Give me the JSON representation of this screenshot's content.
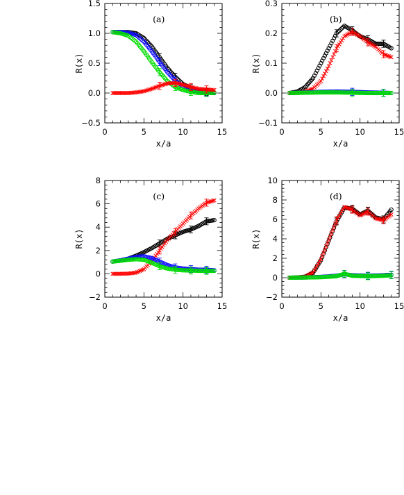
{
  "figure": {
    "colors": {
      "black": "#000000",
      "red": "#ff0000",
      "green": "#00dd00",
      "blue": "#1010ff",
      "cyan": "#00c8c8"
    }
  },
  "chart_data": [
    {
      "type": "scatter",
      "panel": "(a)",
      "xlabel": "x/a",
      "ylabel": "R(x)",
      "xlim": [
        0,
        15
      ],
      "ylim": [
        -0.5,
        1.5
      ],
      "xticks": [
        "0",
        "5",
        "10",
        "15"
      ],
      "yticks": [
        "−0.5",
        "0.0",
        "0.5",
        "1.0",
        "1.5"
      ],
      "ytick_values": [
        -0.5,
        0.0,
        0.5,
        1.0,
        1.5
      ],
      "series": [
        {
          "color": "black",
          "marker": "circle",
          "points": [
            [
              1,
              1.02
            ],
            [
              2,
              1.02
            ],
            [
              3,
              1.02
            ],
            [
              4,
              1.0
            ],
            [
              5,
              0.92
            ],
            [
              6,
              0.78
            ],
            [
              7,
              0.6
            ],
            [
              8,
              0.42
            ],
            [
              9,
              0.27
            ],
            [
              10,
              0.15
            ],
            [
              11,
              0.08
            ],
            [
              12,
              0.04
            ],
            [
              13,
              0.02
            ],
            [
              14,
              0.01
            ]
          ]
        },
        {
          "color": "blue",
          "marker": "circle",
          "points": [
            [
              1,
              1.02
            ],
            [
              2,
              1.02
            ],
            [
              3,
              1.01
            ],
            [
              4,
              0.97
            ],
            [
              5,
              0.86
            ],
            [
              6,
              0.7
            ],
            [
              7,
              0.52
            ],
            [
              8,
              0.35
            ],
            [
              9,
              0.21
            ],
            [
              10,
              0.11
            ],
            [
              11,
              0.05
            ],
            [
              12,
              0.02
            ],
            [
              13,
              0.01
            ],
            [
              14,
              0.0
            ]
          ]
        },
        {
          "color": "green",
          "marker": "circle",
          "points": [
            [
              1,
              1.02
            ],
            [
              2,
              1.0
            ],
            [
              3,
              0.96
            ],
            [
              4,
              0.86
            ],
            [
              5,
              0.7
            ],
            [
              6,
              0.52
            ],
            [
              7,
              0.35
            ],
            [
              8,
              0.2
            ],
            [
              9,
              0.1
            ],
            [
              10,
              0.05
            ],
            [
              11,
              0.02
            ],
            [
              12,
              0.0
            ],
            [
              13,
              0.0
            ],
            [
              14,
              0.0
            ]
          ]
        },
        {
          "color": "red",
          "marker": "cross",
          "points": [
            [
              1,
              0.0
            ],
            [
              2,
              0.0
            ],
            [
              3,
              0.0
            ],
            [
              4,
              0.01
            ],
            [
              5,
              0.03
            ],
            [
              6,
              0.07
            ],
            [
              7,
              0.12
            ],
            [
              8,
              0.16
            ],
            [
              9,
              0.17
            ],
            [
              10,
              0.14
            ],
            [
              11,
              0.1
            ],
            [
              12,
              0.07
            ],
            [
              13,
              0.06
            ],
            [
              14,
              0.05
            ]
          ]
        }
      ]
    },
    {
      "type": "scatter",
      "panel": "(b)",
      "xlabel": "x/a",
      "ylabel": "R(x)",
      "xlim": [
        0,
        15
      ],
      "ylim": [
        -0.1,
        0.3
      ],
      "xticks": [
        "0",
        "5",
        "10",
        "15"
      ],
      "yticks": [
        "−0.1",
        "0.0",
        "0.1",
        "0.2",
        "0.3"
      ],
      "ytick_values": [
        -0.1,
        0.0,
        0.1,
        0.2,
        0.3
      ],
      "series": [
        {
          "color": "black",
          "marker": "circle",
          "points": [
            [
              1,
              0.0
            ],
            [
              2,
              0.005
            ],
            [
              3,
              0.02
            ],
            [
              4,
              0.05
            ],
            [
              5,
              0.1
            ],
            [
              6,
              0.15
            ],
            [
              7,
              0.2
            ],
            [
              8,
              0.225
            ],
            [
              9,
              0.21
            ],
            [
              10,
              0.19
            ],
            [
              11,
              0.18
            ],
            [
              12,
              0.165
            ],
            [
              13,
              0.165
            ],
            [
              14,
              0.15
            ]
          ]
        },
        {
          "color": "red",
          "marker": "cross",
          "points": [
            [
              1,
              0.0
            ],
            [
              2,
              0.0
            ],
            [
              3,
              0.005
            ],
            [
              4,
              0.015
            ],
            [
              5,
              0.04
            ],
            [
              6,
              0.09
            ],
            [
              7,
              0.15
            ],
            [
              8,
              0.19
            ],
            [
              9,
              0.205
            ],
            [
              10,
              0.19
            ],
            [
              11,
              0.17
            ],
            [
              12,
              0.155
            ],
            [
              13,
              0.13
            ],
            [
              14,
              0.12
            ]
          ]
        },
        {
          "color": "blue",
          "marker": "circle",
          "points": [
            [
              1,
              0.0
            ],
            [
              3,
              0.002
            ],
            [
              5,
              0.004
            ],
            [
              7,
              0.005
            ],
            [
              9,
              0.004
            ],
            [
              11,
              0.002
            ],
            [
              13,
              0.001
            ],
            [
              14,
              0.0
            ]
          ]
        },
        {
          "color": "green",
          "marker": "circle",
          "points": [
            [
              1,
              0.0
            ],
            [
              3,
              0.001
            ],
            [
              5,
              0.002
            ],
            [
              7,
              0.002
            ],
            [
              9,
              0.001
            ],
            [
              11,
              0.0
            ],
            [
              13,
              0.0
            ],
            [
              14,
              0.0
            ]
          ]
        }
      ]
    },
    {
      "type": "scatter",
      "panel": "(c)",
      "xlabel": "x/a",
      "ylabel": "R(x)",
      "xlim": [
        0,
        15
      ],
      "ylim": [
        -2,
        8
      ],
      "xticks": [
        "0",
        "5",
        "10",
        "15"
      ],
      "yticks": [
        "−2",
        "0",
        "2",
        "4",
        "6",
        "8"
      ],
      "ytick_values": [
        -2,
        0,
        2,
        4,
        6,
        8
      ],
      "series": [
        {
          "color": "black",
          "marker": "circle",
          "points": [
            [
              1,
              1.05
            ],
            [
              2,
              1.15
            ],
            [
              3,
              1.3
            ],
            [
              4,
              1.55
            ],
            [
              5,
              1.85
            ],
            [
              6,
              2.2
            ],
            [
              7,
              2.6
            ],
            [
              8,
              3.0
            ],
            [
              9,
              3.3
            ],
            [
              10,
              3.6
            ],
            [
              11,
              3.8
            ],
            [
              12,
              4.1
            ],
            [
              13,
              4.5
            ],
            [
              14,
              4.6
            ]
          ]
        },
        {
          "color": "red",
          "marker": "cross",
          "points": [
            [
              1,
              0.0
            ],
            [
              2,
              0.0
            ],
            [
              3,
              0.02
            ],
            [
              4,
              0.1
            ],
            [
              5,
              0.4
            ],
            [
              6,
              1.1
            ],
            [
              7,
              2.0
            ],
            [
              8,
              2.9
            ],
            [
              9,
              3.6
            ],
            [
              10,
              4.3
            ],
            [
              11,
              5.0
            ],
            [
              12,
              5.6
            ],
            [
              13,
              6.1
            ],
            [
              14,
              6.3
            ]
          ]
        },
        {
          "color": "blue",
          "marker": "circle",
          "points": [
            [
              1,
              1.05
            ],
            [
              2,
              1.15
            ],
            [
              3,
              1.3
            ],
            [
              4,
              1.45
            ],
            [
              5,
              1.5
            ],
            [
              6,
              1.35
            ],
            [
              7,
              1.05
            ],
            [
              8,
              0.75
            ],
            [
              9,
              0.55
            ],
            [
              10,
              0.45
            ],
            [
              11,
              0.4
            ],
            [
              12,
              0.35
            ],
            [
              13,
              0.35
            ],
            [
              14,
              0.3
            ]
          ]
        },
        {
          "color": "green",
          "marker": "circle",
          "points": [
            [
              1,
              1.05
            ],
            [
              2,
              1.12
            ],
            [
              3,
              1.2
            ],
            [
              4,
              1.25
            ],
            [
              5,
              1.2
            ],
            [
              6,
              0.95
            ],
            [
              7,
              0.65
            ],
            [
              8,
              0.45
            ],
            [
              9,
              0.35
            ],
            [
              10,
              0.3
            ],
            [
              11,
              0.28
            ],
            [
              12,
              0.26
            ],
            [
              13,
              0.25
            ],
            [
              14,
              0.25
            ]
          ]
        }
      ]
    },
    {
      "type": "scatter",
      "panel": "(d)",
      "xlabel": "x/a",
      "ylabel": "R(x)",
      "xlim": [
        0,
        15
      ],
      "ylim": [
        -2,
        10
      ],
      "xticks": [
        "0",
        "5",
        "10",
        "15"
      ],
      "yticks": [
        "−2",
        "0",
        "2",
        "4",
        "6",
        "8",
        "10"
      ],
      "ytick_values": [
        -2,
        0,
        2,
        4,
        6,
        8,
        10
      ],
      "series": [
        {
          "color": "black",
          "marker": "circle",
          "points": [
            [
              1,
              0.0
            ],
            [
              2,
              0.02
            ],
            [
              3,
              0.1
            ],
            [
              4,
              0.5
            ],
            [
              5,
              1.8
            ],
            [
              6,
              3.8
            ],
            [
              7,
              5.8
            ],
            [
              8,
              7.2
            ],
            [
              9,
              7.1
            ],
            [
              10,
              6.5
            ],
            [
              11,
              6.9
            ],
            [
              12,
              6.2
            ],
            [
              13,
              6.0
            ],
            [
              14,
              7.0
            ]
          ]
        },
        {
          "color": "red",
          "marker": "cross",
          "points": [
            [
              1,
              0.0
            ],
            [
              2,
              0.02
            ],
            [
              3,
              0.1
            ],
            [
              4,
              0.55
            ],
            [
              5,
              1.9
            ],
            [
              6,
              3.9
            ],
            [
              7,
              5.9
            ],
            [
              8,
              7.3
            ],
            [
              9,
              7.0
            ],
            [
              10,
              6.4
            ],
            [
              11,
              6.8
            ],
            [
              12,
              6.1
            ],
            [
              13,
              5.9
            ],
            [
              14,
              6.5
            ]
          ]
        },
        {
          "color": "blue",
          "marker": "circle",
          "points": [
            [
              1,
              0.0
            ],
            [
              3,
              0.02
            ],
            [
              5,
              0.08
            ],
            [
              7,
              0.2
            ],
            [
              8,
              0.35
            ],
            [
              9,
              0.25
            ],
            [
              11,
              0.2
            ],
            [
              13,
              0.25
            ],
            [
              14,
              0.3
            ]
          ]
        },
        {
          "color": "green",
          "marker": "circle",
          "points": [
            [
              1,
              0.0
            ],
            [
              3,
              0.02
            ],
            [
              5,
              0.05
            ],
            [
              7,
              0.15
            ],
            [
              8,
              0.4
            ],
            [
              9,
              0.2
            ],
            [
              11,
              0.15
            ],
            [
              13,
              0.2
            ],
            [
              14,
              0.25
            ]
          ]
        }
      ]
    }
  ]
}
